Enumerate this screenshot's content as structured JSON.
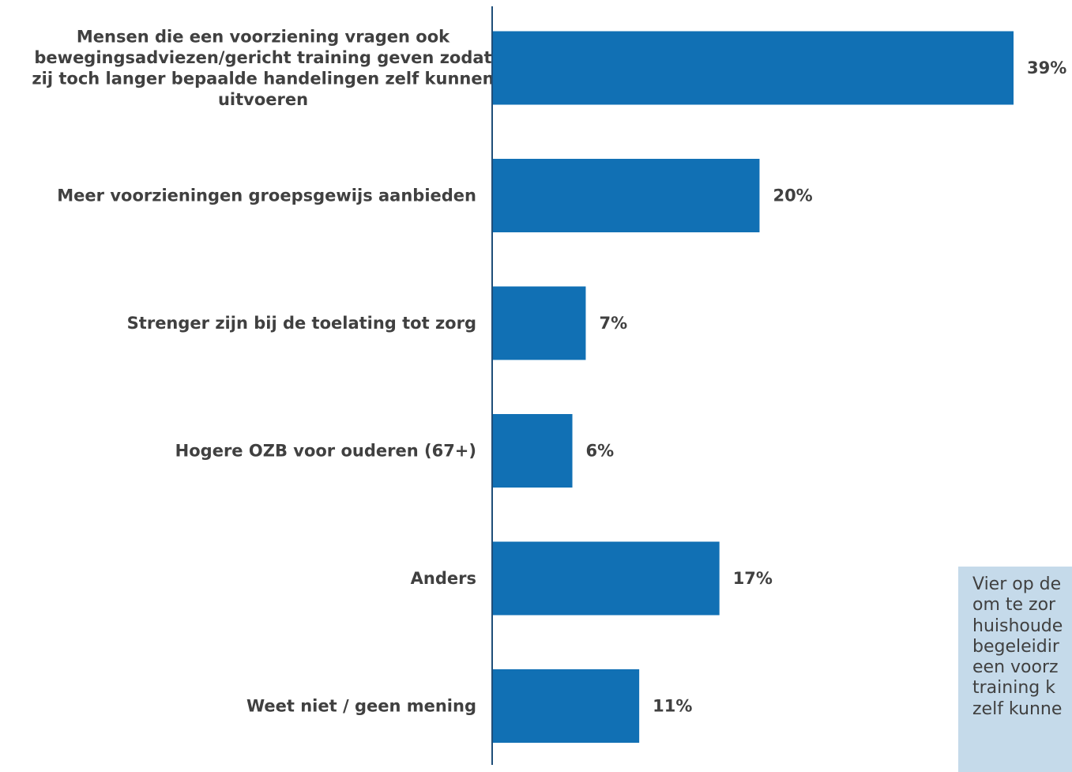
{
  "chart_data": {
    "type": "bar",
    "orientation": "horizontal",
    "categories": [
      "Mensen die een voorziening vragen ook bewegingsadviezen/gericht training geven zodat zij toch langer bepaalde handelingen zelf kunnen uitvoeren",
      "Meer voorzieningen groepsgewijs aanbieden",
      "Strenger zijn bij de toelating tot zorg",
      "Hogere OZB voor ouderen (67+)",
      "Anders",
      "Weet niet / geen mening"
    ],
    "category_lines": [
      [
        "Mensen die een voorziening vragen ook",
        "bewegingsadviezen/gericht training geven zodat",
        "zij toch langer bepaalde handelingen zelf kunnen",
        "uitvoeren"
      ],
      [
        "Meer voorzieningen groepsgewijs aanbieden"
      ],
      [
        "Strenger zijn bij de toelating tot zorg"
      ],
      [
        "Hogere OZB voor ouderen (67+)"
      ],
      [
        "Anders"
      ],
      [
        "Weet niet / geen mening"
      ]
    ],
    "values": [
      39,
      20,
      7,
      6,
      17,
      11
    ],
    "value_labels": [
      "39%",
      "20%",
      "7%",
      "6%",
      "17%",
      "11%"
    ],
    "unit": "%",
    "xlim": [
      0,
      39
    ],
    "grid": false,
    "legend": "none",
    "bar_color": "#1170b4",
    "axis_color": "#1f4e79"
  },
  "callout": {
    "lines": [
      "Vier op de",
      "om te zor",
      "huishoude",
      "begeleidir",
      "een voorz",
      "training k",
      "zelf kunne"
    ]
  }
}
